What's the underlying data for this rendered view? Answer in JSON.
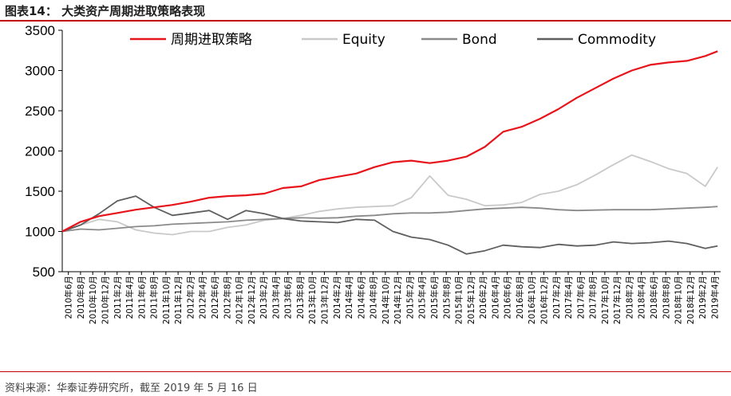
{
  "header": {
    "title": "图表14：  大类资产周期进取策略表现"
  },
  "footer": {
    "source": "资料来源：华泰证券研究所，截至 2019 年 5 月 16 日"
  },
  "chart_data": {
    "type": "line",
    "title": "",
    "xlabel": "",
    "ylabel": "",
    "ylim": [
      500,
      3500
    ],
    "yticks": [
      500,
      1000,
      1500,
      2000,
      2500,
      3000,
      3500
    ],
    "grid": false,
    "legend_position": "top",
    "x_tick_labels": [
      "2010年6月",
      "2010年8月",
      "2010年10月",
      "2010年12月",
      "2011年2月",
      "2011年4月",
      "2011年6月",
      "2011年8月",
      "2011年10月",
      "2011年12月",
      "2012年2月",
      "2012年4月",
      "2012年6月",
      "2012年8月",
      "2012年10月",
      "2012年12月",
      "2013年2月",
      "2013年4月",
      "2013年6月",
      "2013年8月",
      "2013年10月",
      "2013年12月",
      "2014年2月",
      "2014年4月",
      "2014年6月",
      "2014年8月",
      "2014年10月",
      "2014年12月",
      "2015年2月",
      "2015年4月",
      "2015年6月",
      "2015年8月",
      "2015年10月",
      "2015年12月",
      "2016年2月",
      "2016年4月",
      "2016年6月",
      "2016年8月",
      "2016年10月",
      "2016年12月",
      "2017年2月",
      "2017年4月",
      "2017年6月",
      "2017年8月",
      "2017年10月",
      "2017年12月",
      "2018年2月",
      "2018年4月",
      "2018年6月",
      "2018年8月",
      "2018年10月",
      "2018年12月",
      "2019年2月",
      "2019年4月"
    ],
    "x_months": [
      "2010-06",
      "2010-09",
      "2010-12",
      "2011-03",
      "2011-06",
      "2011-09",
      "2011-12",
      "2012-03",
      "2012-06",
      "2012-09",
      "2012-12",
      "2013-03",
      "2013-06",
      "2013-09",
      "2013-12",
      "2014-03",
      "2014-06",
      "2014-09",
      "2014-12",
      "2015-03",
      "2015-06",
      "2015-09",
      "2015-12",
      "2016-03",
      "2016-06",
      "2016-09",
      "2016-12",
      "2017-03",
      "2017-06",
      "2017-09",
      "2017-12",
      "2018-03",
      "2018-06",
      "2018-09",
      "2018-12",
      "2019-03",
      "2019-05"
    ],
    "series": [
      {
        "name": "周期进取策略",
        "color": "#e8141b",
        "values": [
          1000,
          1120,
          1190,
          1230,
          1270,
          1300,
          1330,
          1370,
          1420,
          1440,
          1450,
          1470,
          1540,
          1560,
          1640,
          1680,
          1720,
          1800,
          1860,
          1880,
          1850,
          1880,
          1930,
          2050,
          2240,
          2300,
          2400,
          2520,
          2660,
          2780,
          2900,
          3000,
          3070,
          3100,
          3120,
          3180,
          3240
        ]
      },
      {
        "name": "Equity",
        "color": "#c9c9c9",
        "values": [
          1000,
          1080,
          1150,
          1120,
          1020,
          980,
          960,
          1000,
          1000,
          1050,
          1080,
          1140,
          1160,
          1200,
          1250,
          1280,
          1300,
          1310,
          1320,
          1420,
          1690,
          1450,
          1400,
          1320,
          1330,
          1360,
          1460,
          1500,
          1580,
          1700,
          1830,
          1950,
          1870,
          1780,
          1720,
          1560,
          1800
        ]
      },
      {
        "name": "Bond",
        "color": "#8a8a8a",
        "values": [
          1000,
          1030,
          1020,
          1040,
          1060,
          1070,
          1090,
          1100,
          1110,
          1120,
          1140,
          1150,
          1160,
          1170,
          1165,
          1170,
          1190,
          1200,
          1220,
          1230,
          1230,
          1240,
          1260,
          1280,
          1290,
          1300,
          1290,
          1270,
          1260,
          1265,
          1270,
          1270,
          1270,
          1280,
          1290,
          1300,
          1310
        ]
      },
      {
        "name": "Commodity",
        "color": "#5f5f5f",
        "values": [
          1000,
          1080,
          1220,
          1380,
          1440,
          1300,
          1200,
          1230,
          1260,
          1150,
          1260,
          1220,
          1160,
          1130,
          1120,
          1110,
          1150,
          1140,
          1000,
          930,
          900,
          830,
          720,
          760,
          830,
          810,
          800,
          840,
          820,
          830,
          870,
          850,
          860,
          880,
          850,
          790,
          820
        ]
      }
    ]
  }
}
